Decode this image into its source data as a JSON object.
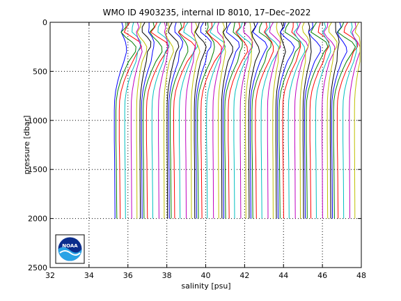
{
  "chart_data": {
    "type": "line",
    "title": "WMO ID 4903235, internal ID 8010, 17–Dec–2022",
    "xlabel": "salinity [psu]",
    "ylabel": "pressure [dbar]",
    "xlim": [
      32,
      48
    ],
    "ylim": [
      2500,
      0
    ],
    "y_reversed": true,
    "grid": true,
    "xticks": [
      "32",
      "34",
      "36",
      "38",
      "40",
      "42",
      "44",
      "46",
      "48"
    ],
    "yticks": [
      "0",
      "500",
      "1000",
      "1500",
      "2000",
      "2500"
    ],
    "offset_per_profile": 0.2,
    "colors": [
      "#0000ff",
      "#008000",
      "#ff0000",
      "#00bfbf",
      "#bf00bf",
      "#bfbf00",
      "#000000"
    ],
    "profile_shape": {
      "pressure": [
        0,
        50,
        100,
        150,
        200,
        250,
        300,
        400,
        500,
        600,
        700,
        800,
        900,
        1000,
        1200,
        1400,
        1600,
        1800,
        2000
      ],
      "salinity_rel": [
        0.05,
        0.0,
        -0.15,
        0.15,
        0.45,
        0.55,
        0.45,
        0.2,
        -0.05,
        -0.25,
        -0.4,
        -0.48,
        -0.5,
        -0.5,
        -0.5,
        -0.48,
        -0.47,
        -0.46,
        -0.45
      ]
    },
    "profile_count": 62,
    "first_deep_salinity": 35.15
  },
  "logo": {
    "text": "NOAA",
    "name": "noaa-logo"
  }
}
